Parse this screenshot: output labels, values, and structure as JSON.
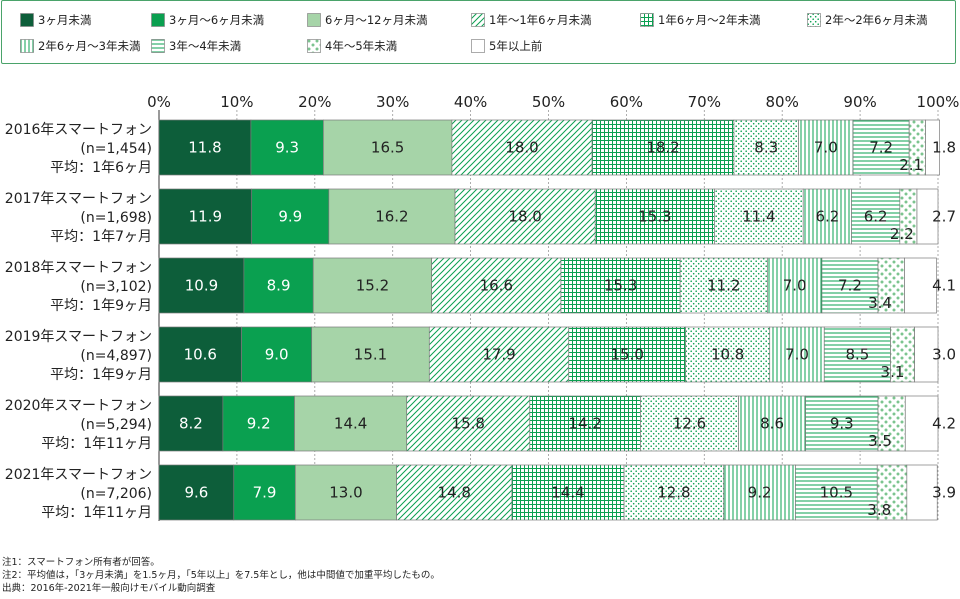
{
  "chart_data": {
    "type": "bar",
    "orientation": "horizontal",
    "stacked": true,
    "xlim": [
      0,
      100
    ],
    "xticks": [
      "0%",
      "10%",
      "20%",
      "30%",
      "40%",
      "50%",
      "60%",
      "70%",
      "80%",
      "90%",
      "100%"
    ],
    "categories": [
      [
        "2016年スマートフォン",
        "(n=1,454)",
        "平均：1年6ヶ月"
      ],
      [
        "2017年スマートフォン",
        "(n=1,698)",
        "平均：1年7ヶ月"
      ],
      [
        "2018年スマートフォン",
        "(n=3,102)",
        "平均：1年9ヶ月"
      ],
      [
        "2019年スマートフォン",
        "(n=4,897)",
        "平均：1年9ヶ月"
      ],
      [
        "2020年スマートフォン",
        "(n=5,294)",
        "平均：1年11ヶ月"
      ],
      [
        "2021年スマートフォン",
        "(n=7,206)",
        "平均：1年11ヶ月"
      ]
    ],
    "series": [
      {
        "name": "3ヶ月未満",
        "pattern": "solid",
        "color": "#0d5e3a",
        "label_color": "#ffffff",
        "values": [
          11.8,
          11.9,
          10.9,
          10.6,
          8.2,
          9.6
        ]
      },
      {
        "name": "3ヶ月～6ヶ月未満",
        "pattern": "solid",
        "color": "#0aa050",
        "label_color": "#ffffff",
        "values": [
          9.3,
          9.9,
          8.9,
          9.0,
          9.2,
          7.9
        ]
      },
      {
        "name": "6ヶ月～12ヶ月未満",
        "pattern": "solid",
        "color": "#a6d4a8",
        "label_color": "#222222",
        "values": [
          16.5,
          16.2,
          15.2,
          15.1,
          14.4,
          13.0
        ]
      },
      {
        "name": "1年～1年6ヶ月未満",
        "pattern": "diagonal",
        "color": "#0aa050",
        "label_color": "#222222",
        "values": [
          18.0,
          18.0,
          16.6,
          17.9,
          15.8,
          14.8
        ]
      },
      {
        "name": "1年6ヶ月～2年未満",
        "pattern": "grid",
        "color": "#0aa050",
        "label_color": "#222222",
        "values": [
          18.2,
          15.3,
          15.3,
          15.0,
          14.2,
          14.4
        ]
      },
      {
        "name": "2年～2年6ヶ月未満",
        "pattern": "dots",
        "color": "#0aa050",
        "label_color": "#222222",
        "values": [
          8.3,
          11.4,
          11.2,
          10.8,
          12.6,
          12.8
        ]
      },
      {
        "name": "2年6ヶ月～3年未満",
        "pattern": "vertical",
        "color": "#0aa050",
        "label_color": "#222222",
        "values": [
          7.0,
          6.2,
          7.0,
          7.0,
          8.6,
          9.2
        ]
      },
      {
        "name": "3年～4年未満",
        "pattern": "horizontal",
        "color": "#0aa050",
        "label_color": "#222222",
        "values": [
          7.2,
          6.2,
          7.2,
          8.5,
          9.3,
          10.5
        ]
      },
      {
        "name": "4年～5年未満",
        "pattern": "bigdots",
        "color": "#0aa050",
        "label_color": "#222222",
        "values": [
          2.1,
          2.2,
          3.4,
          3.1,
          3.5,
          3.8
        ]
      },
      {
        "name": "5年以上前",
        "pattern": "white",
        "color": "#ffffff",
        "label_color": "#222222",
        "values": [
          1.8,
          2.7,
          4.1,
          3.0,
          4.2,
          3.9
        ]
      }
    ]
  },
  "notes": [
    "注1：スマートフォン所有者が回答。",
    "注2：平均値は，「3ヶ月未満」を1.5ヶ月，「5年以上」を7.5年とし，他は中間値で加重平均したもの。",
    "出典：2016年-2021年一般向けモバイル動向調査"
  ]
}
